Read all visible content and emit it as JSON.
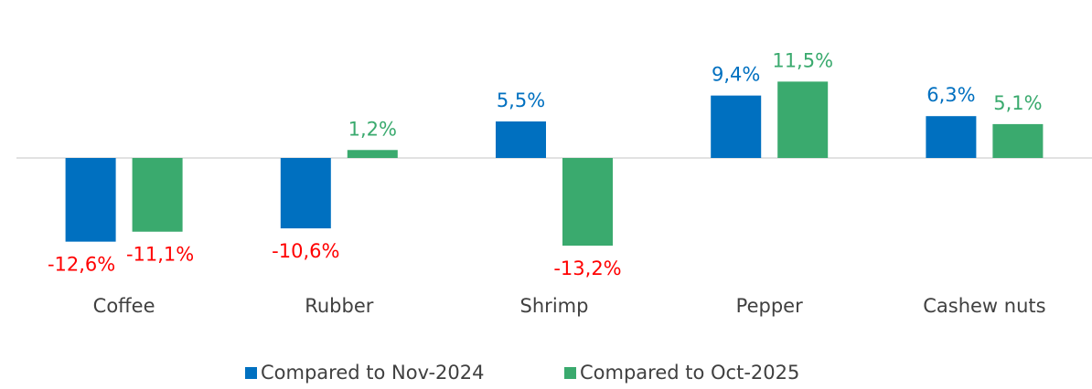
{
  "chart_data": {
    "type": "bar",
    "categories": [
      "Coffee",
      "Rubber",
      "Shrimp",
      "Pepper",
      "Cashew nuts"
    ],
    "series": [
      {
        "name": "Compared to Nov-2024",
        "color": "#0070c0",
        "values": [
          -12.6,
          -10.6,
          5.5,
          9.4,
          6.3
        ],
        "value_labels": [
          "-12,6%",
          "-10,6%",
          "5,5%",
          "9,4%",
          "6,3%"
        ]
      },
      {
        "name": "Compared to Oct-2025",
        "color": "#3aaa6e",
        "values": [
          -11.1,
          1.2,
          -13.2,
          11.5,
          5.1
        ],
        "value_labels": [
          "-11,1%",
          "1,2%",
          "-13,2%",
          "11,5%",
          "5,1%"
        ]
      }
    ],
    "negative_label_color": "#ff0000",
    "legend": "bottom"
  }
}
